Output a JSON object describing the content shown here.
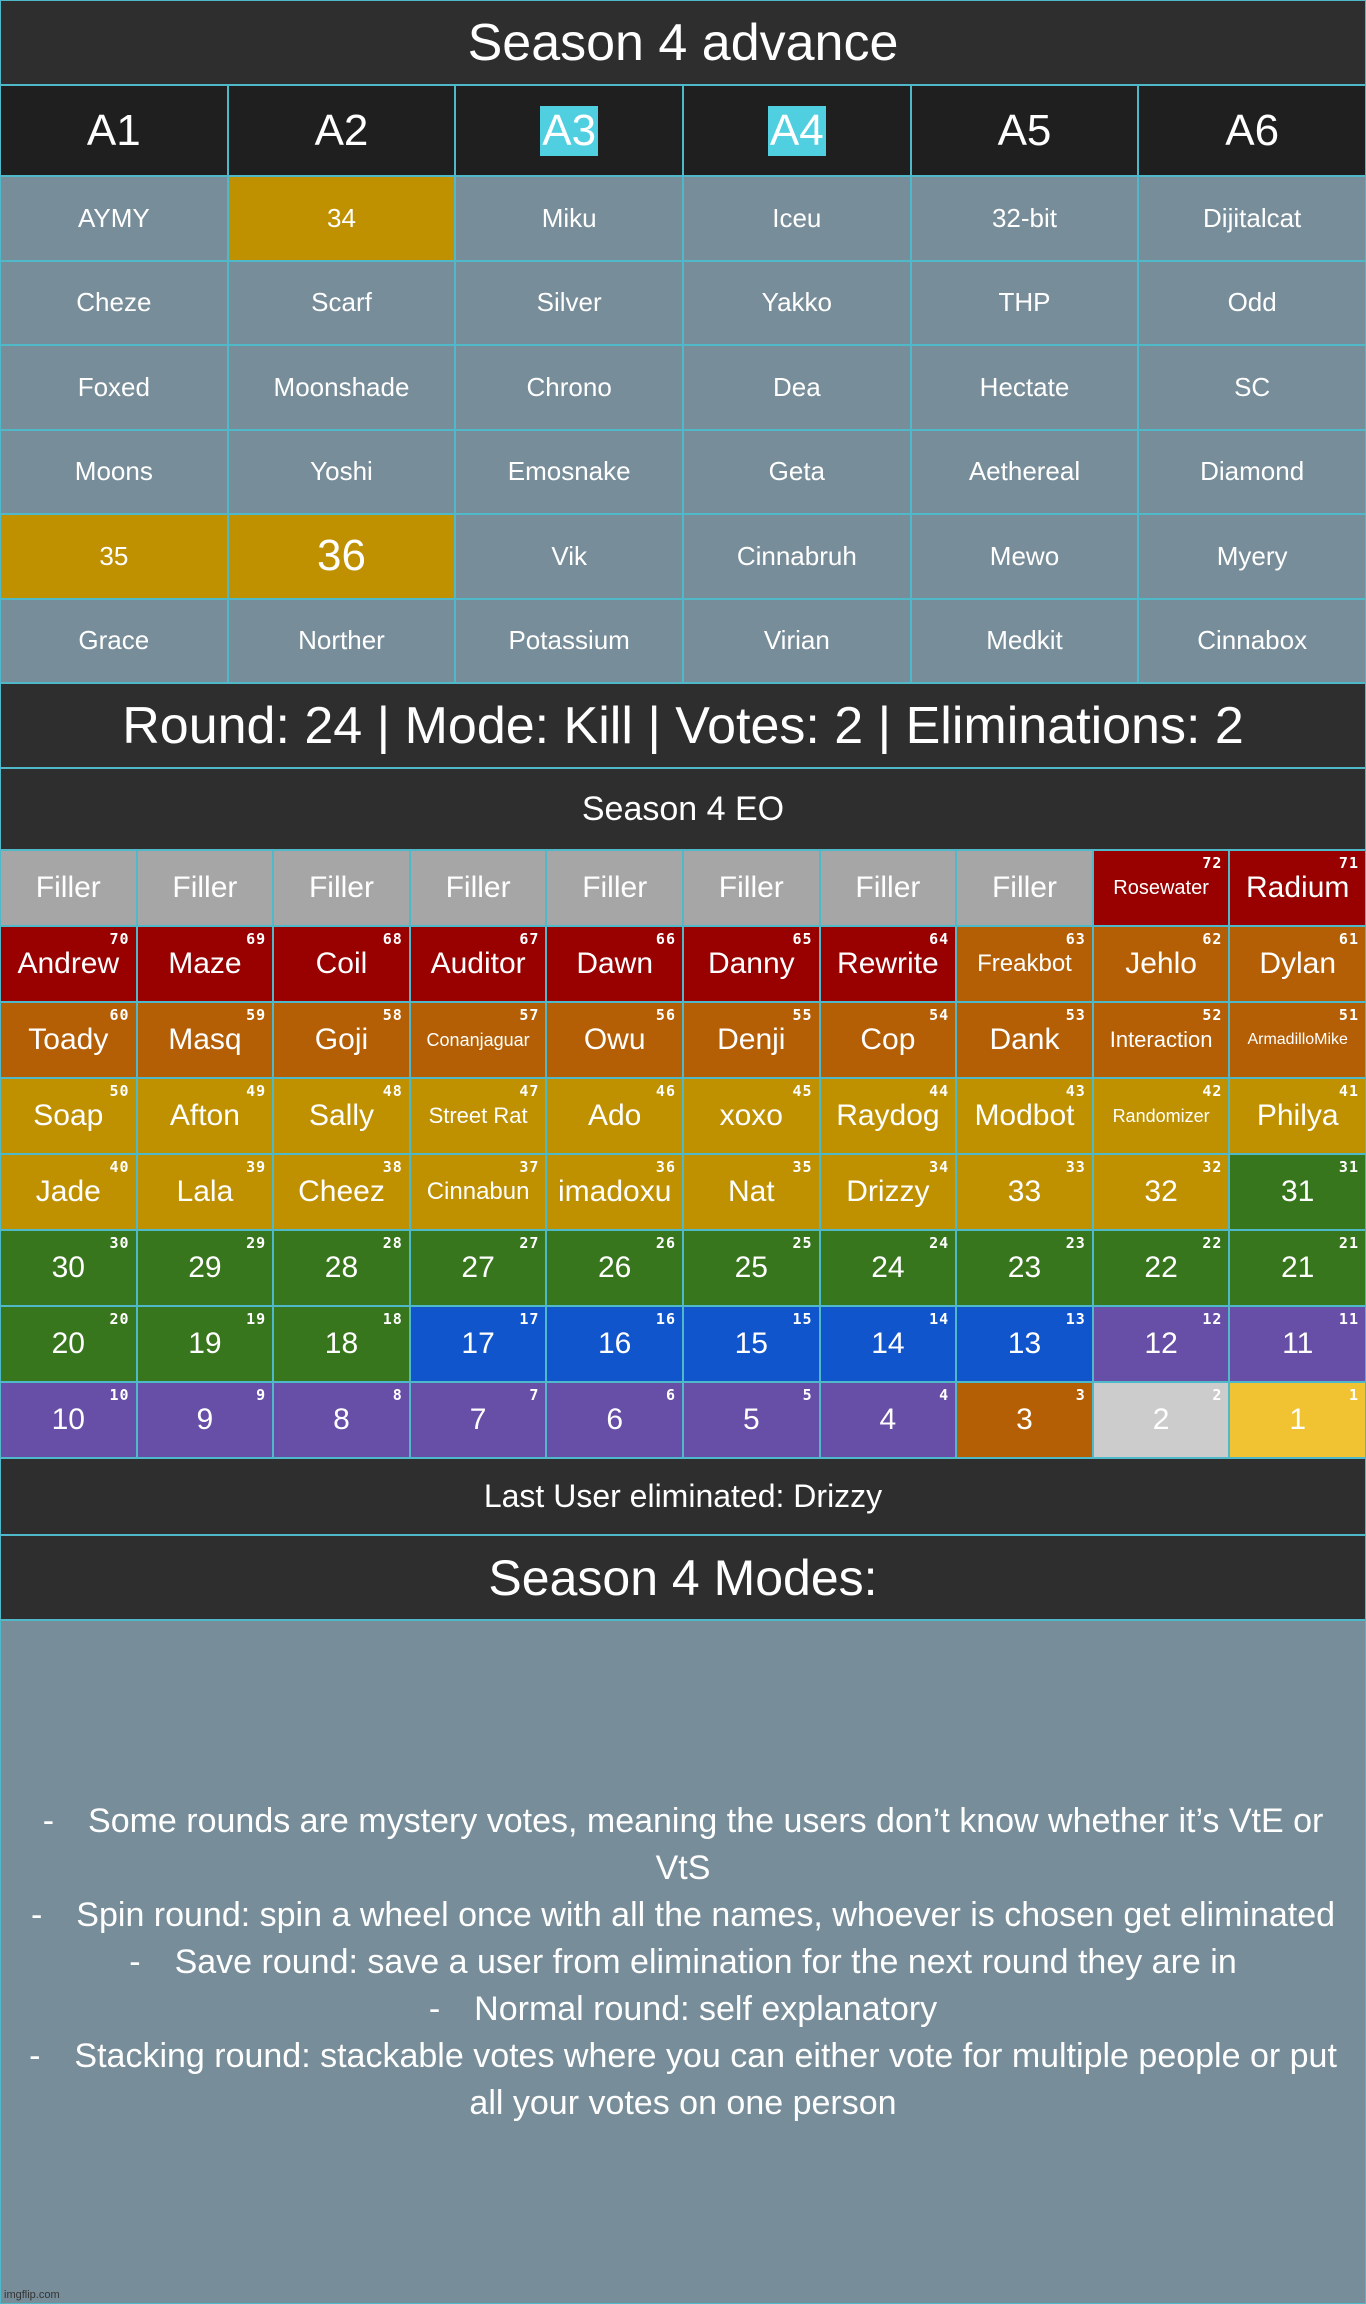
{
  "title": "Season 4 advance",
  "advance": {
    "columns": [
      "A1",
      "A2",
      {
        "text": "A3",
        "highlight": "#4fcfe0"
      },
      {
        "text": "A4",
        "highlight": "#4fcfe0"
      },
      "A5",
      "A6"
    ],
    "rows": [
      [
        "AYMY",
        {
          "text": "34",
          "color": "#bf9000"
        },
        "Miku",
        "Iceu",
        "32-bit",
        "Dijitalcat"
      ],
      [
        "Cheze",
        "Scarf",
        "Silver",
        "Yakko",
        "THP",
        "Odd"
      ],
      [
        "Foxed",
        "Moonshade",
        "Chrono",
        "Dea",
        "Hectate",
        "SC"
      ],
      [
        "Moons",
        "Yoshi",
        "Emosnake",
        "Geta",
        "Aethereal",
        "Diamond"
      ],
      [
        {
          "text": "35",
          "color": "#bf9000"
        },
        {
          "text": "36",
          "color": "#bf9000"
        },
        "Vik",
        "Cinnabruh",
        "Mewo",
        "Myery"
      ],
      [
        "Grace",
        "Norther",
        "Potassium",
        "Virian",
        "Medkit",
        "Cinnabox"
      ]
    ]
  },
  "status": "Round: 24 | Mode: Kill | Votes: 2 | Eliminations: 2",
  "eo_title": "Season 4 EO",
  "eo": {
    "rows": [
      [
        {
          "name": "Filler",
          "color": "#a6a6a6"
        },
        {
          "name": "Filler",
          "color": "#a6a6a6"
        },
        {
          "name": "Filler",
          "color": "#a6a6a6"
        },
        {
          "name": "Filler",
          "color": "#a6a6a6"
        },
        {
          "name": "Filler",
          "color": "#a6a6a6"
        },
        {
          "name": "Filler",
          "color": "#a6a6a6"
        },
        {
          "name": "Filler",
          "color": "#a6a6a6"
        },
        {
          "name": "Filler",
          "color": "#a6a6a6"
        },
        {
          "name": "Rosewater",
          "num": 72,
          "color": "#990000"
        },
        {
          "name": "Radium",
          "num": 71,
          "color": "#990000"
        }
      ],
      [
        {
          "name": "Andrew",
          "num": 70,
          "color": "#990000"
        },
        {
          "name": "Maze",
          "num": 69,
          "color": "#990000"
        },
        {
          "name": "Coil",
          "num": 68,
          "color": "#990000"
        },
        {
          "name": "Auditor",
          "num": 67,
          "color": "#990000"
        },
        {
          "name": "Dawn",
          "num": 66,
          "color": "#990000"
        },
        {
          "name": "Danny",
          "num": 65,
          "color": "#990000"
        },
        {
          "name": "Rewrite",
          "num": 64,
          "color": "#990000"
        },
        {
          "name": "Freakbot",
          "num": 63,
          "color": "#b45f06"
        },
        {
          "name": "Jehlo",
          "num": 62,
          "color": "#b45f06"
        },
        {
          "name": "Dylan",
          "num": 61,
          "color": "#b45f06"
        }
      ],
      [
        {
          "name": "Toady",
          "num": 60,
          "color": "#b45f06"
        },
        {
          "name": "Masq",
          "num": 59,
          "color": "#b45f06"
        },
        {
          "name": "Goji",
          "num": 58,
          "color": "#b45f06"
        },
        {
          "name": "Conanjaguar",
          "num": 57,
          "color": "#b45f06"
        },
        {
          "name": "Owu",
          "num": 56,
          "color": "#b45f06"
        },
        {
          "name": "Denji",
          "num": 55,
          "color": "#b45f06"
        },
        {
          "name": "Cop",
          "num": 54,
          "color": "#b45f06"
        },
        {
          "name": "Dank",
          "num": 53,
          "color": "#b45f06"
        },
        {
          "name": "Interaction",
          "num": 52,
          "color": "#b45f06"
        },
        {
          "name": "ArmadilloMike",
          "num": 51,
          "color": "#b45f06"
        }
      ],
      [
        {
          "name": "Soap",
          "num": 50,
          "color": "#bf9000"
        },
        {
          "name": "Afton",
          "num": 49,
          "color": "#bf9000"
        },
        {
          "name": "Sally",
          "num": 48,
          "color": "#bf9000"
        },
        {
          "name": "Street Rat",
          "num": 47,
          "color": "#bf9000"
        },
        {
          "name": "Ado",
          "num": 46,
          "color": "#bf9000"
        },
        {
          "name": "xoxo",
          "num": 45,
          "color": "#bf9000"
        },
        {
          "name": "Raydog",
          "num": 44,
          "color": "#bf9000"
        },
        {
          "name": "Modbot",
          "num": 43,
          "color": "#bf9000"
        },
        {
          "name": "Randomizer",
          "num": 42,
          "color": "#bf9000"
        },
        {
          "name": "Philya",
          "num": 41,
          "color": "#bf9000"
        }
      ],
      [
        {
          "name": "Jade",
          "num": 40,
          "color": "#bf9000"
        },
        {
          "name": "Lala",
          "num": 39,
          "color": "#bf9000"
        },
        {
          "name": "Cheez",
          "num": 38,
          "color": "#bf9000"
        },
        {
          "name": "Cinnabun",
          "num": 37,
          "color": "#bf9000"
        },
        {
          "name": "imadoxu",
          "num": 36,
          "color": "#bf9000"
        },
        {
          "name": "Nat",
          "num": 35,
          "color": "#bf9000"
        },
        {
          "name": "Drizzy",
          "num": 34,
          "color": "#bf9000"
        },
        {
          "name": "33",
          "num": 33,
          "color": "#bf9000"
        },
        {
          "name": "32",
          "num": 32,
          "color": "#bf9000"
        },
        {
          "name": "31",
          "num": 31,
          "color": "#38761d"
        }
      ],
      [
        {
          "name": "30",
          "num": 30,
          "color": "#38761d"
        },
        {
          "name": "29",
          "num": 29,
          "color": "#38761d"
        },
        {
          "name": "28",
          "num": 28,
          "color": "#38761d"
        },
        {
          "name": "27",
          "num": 27,
          "color": "#38761d"
        },
        {
          "name": "26",
          "num": 26,
          "color": "#38761d"
        },
        {
          "name": "25",
          "num": 25,
          "color": "#38761d"
        },
        {
          "name": "24",
          "num": 24,
          "color": "#38761d"
        },
        {
          "name": "23",
          "num": 23,
          "color": "#38761d"
        },
        {
          "name": "22",
          "num": 22,
          "color": "#38761d"
        },
        {
          "name": "21",
          "num": 21,
          "color": "#38761d"
        }
      ],
      [
        {
          "name": "20",
          "num": 20,
          "color": "#38761d"
        },
        {
          "name": "19",
          "num": 19,
          "color": "#38761d"
        },
        {
          "name": "18",
          "num": 18,
          "color": "#38761d"
        },
        {
          "name": "17",
          "num": 17,
          "color": "#1155cc"
        },
        {
          "name": "16",
          "num": 16,
          "color": "#1155cc"
        },
        {
          "name": "15",
          "num": 15,
          "color": "#1155cc"
        },
        {
          "name": "14",
          "num": 14,
          "color": "#1155cc"
        },
        {
          "name": "13",
          "num": 13,
          "color": "#1155cc"
        },
        {
          "name": "12",
          "num": 12,
          "color": "#674ea7"
        },
        {
          "name": "11",
          "num": 11,
          "color": "#674ea7"
        }
      ],
      [
        {
          "name": "10",
          "num": 10,
          "color": "#674ea7"
        },
        {
          "name": "9",
          "num": 9,
          "color": "#674ea7"
        },
        {
          "name": "8",
          "num": 8,
          "color": "#674ea7"
        },
        {
          "name": "7",
          "num": 7,
          "color": "#674ea7"
        },
        {
          "name": "6",
          "num": 6,
          "color": "#674ea7"
        },
        {
          "name": "5",
          "num": 5,
          "color": "#674ea7"
        },
        {
          "name": "4",
          "num": 4,
          "color": "#674ea7"
        },
        {
          "name": "3",
          "num": 3,
          "color": "#b45f06"
        },
        {
          "name": "2",
          "num": 2,
          "color": "#cccccc"
        },
        {
          "name": "1",
          "num": 1,
          "color": "#f1c232"
        }
      ]
    ]
  },
  "last_eliminated": "Last User eliminated: Drizzy",
  "modes_title": "Season 4 Modes:",
  "modes": [
    {
      "marker": "-",
      "text": "Some rounds are mystery votes, meaning the users don’t know whether it’s VtE or VtS"
    },
    {
      "marker": "-",
      "text": "Spin round: spin a wheel once with all the names, whoever is chosen get eliminated"
    },
    {
      "marker": "-",
      "text": "Save round: save a user from elimination for the next round they are in"
    },
    {
      "marker": "-",
      "text": "Normal round: self explanatory"
    },
    {
      "marker": "-",
      "text": "Stacking round: stackable votes where you can either vote for multiple people or put all your votes on one person"
    }
  ],
  "watermark": "imgflip.com"
}
